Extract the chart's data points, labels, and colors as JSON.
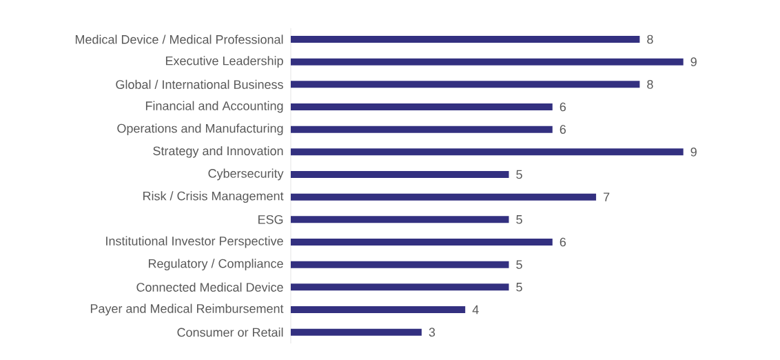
{
  "chart_data": {
    "type": "bar",
    "orientation": "horizontal",
    "categories": [
      "Medical Device / Medical Professional",
      "Executive Leadership",
      "Global / International Business",
      "Financial and Accounting",
      "Operations and Manufacturing",
      "Strategy and Innovation",
      "Cybersecurity",
      "Risk / Crisis Management",
      "ESG",
      "Institutional Investor Perspective",
      "Regulatory / Compliance",
      "Connected Medical Device",
      "Payer and Medical Reimbursement",
      "Consumer or Retail"
    ],
    "values": [
      8,
      9,
      8,
      6,
      6,
      9,
      5,
      7,
      5,
      6,
      5,
      5,
      4,
      3
    ],
    "color": "#333080",
    "data_labels": true
  }
}
